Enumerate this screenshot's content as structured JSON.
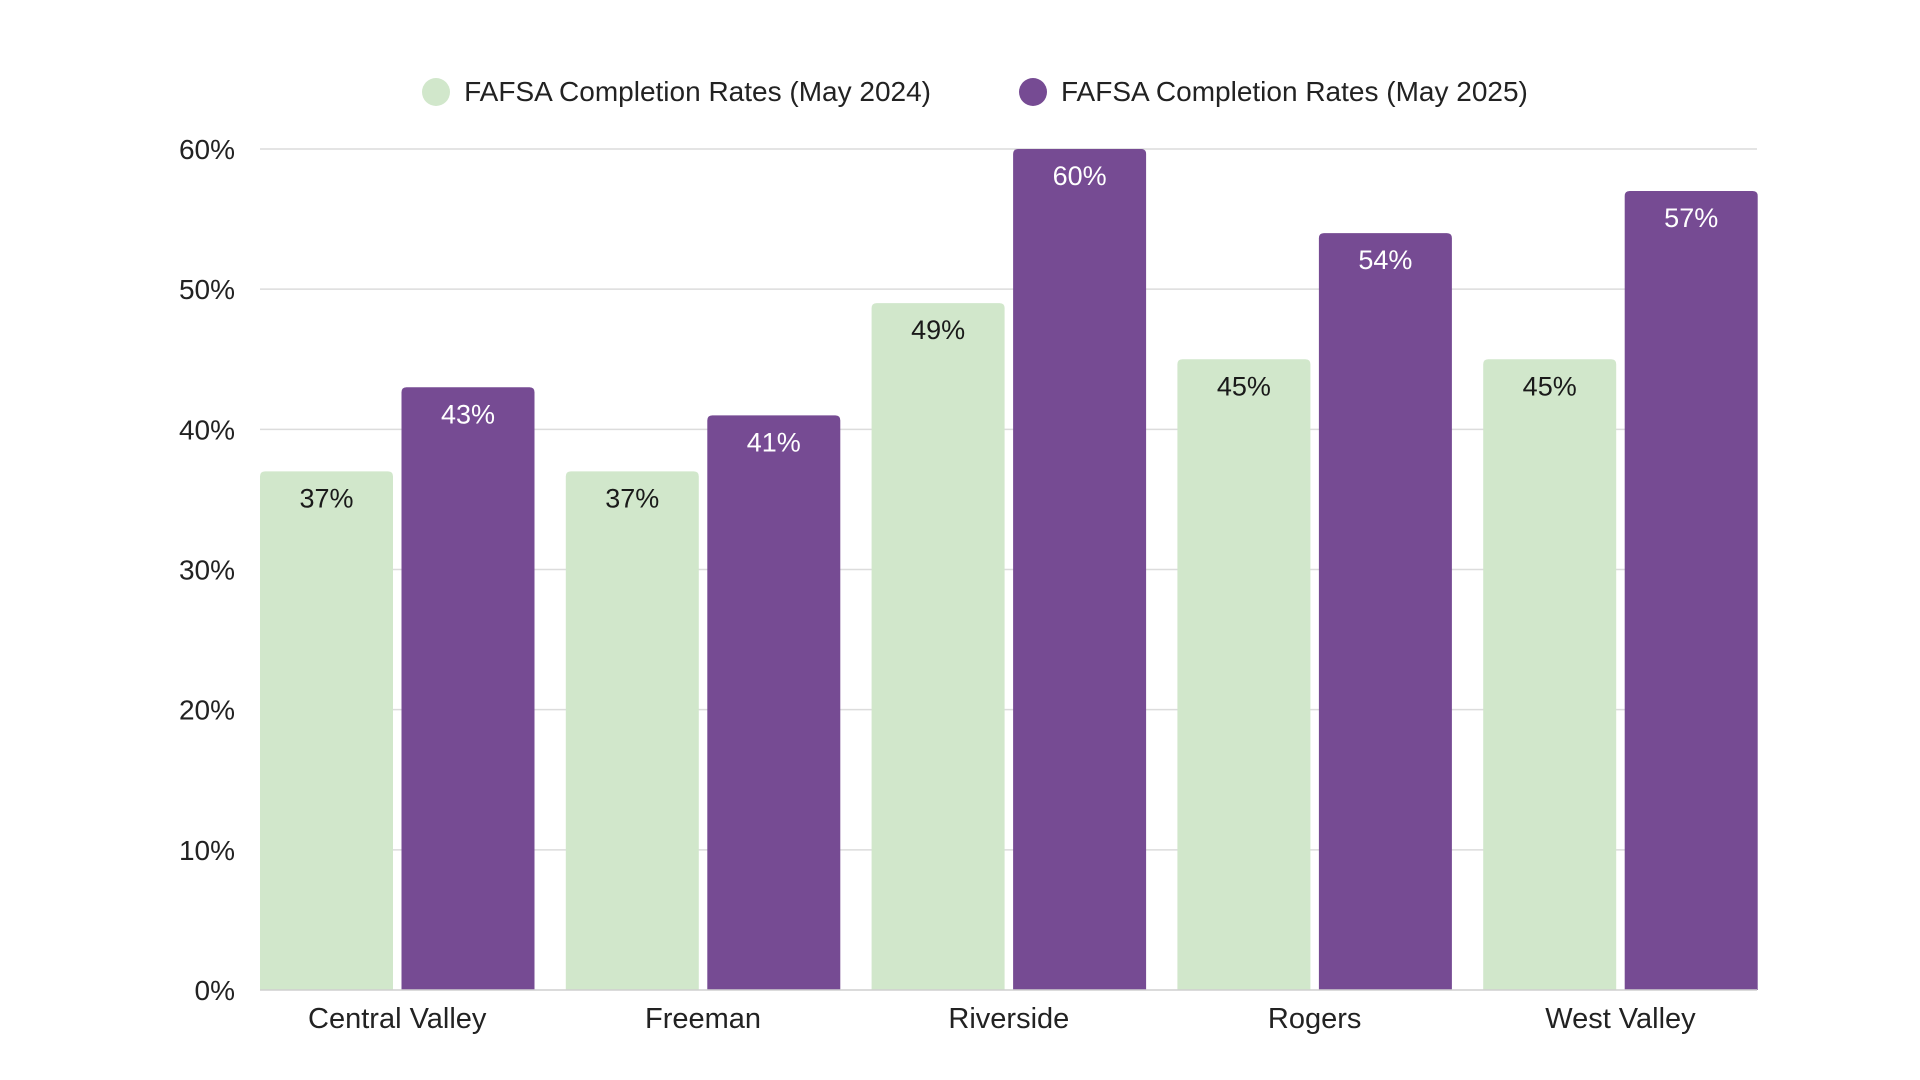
{
  "chart_data": {
    "type": "bar",
    "title": "",
    "xlabel": "",
    "ylabel": "",
    "categories": [
      "Central Valley",
      "Freeman",
      "Riverside",
      "Rogers",
      "West Valley"
    ],
    "series": [
      {
        "name": "FAFSA Completion Rates (May 2024)",
        "color": "#d1e7cb",
        "label_color": "#1a1a1a",
        "values": [
          37,
          37,
          49,
          45,
          45
        ]
      },
      {
        "name": "FAFSA Completion Rates (May 2025)",
        "color": "#764b93",
        "label_color": "#ffffff",
        "values": [
          43,
          41,
          60,
          54,
          57
        ]
      }
    ],
    "ylim": [
      0,
      60
    ],
    "yticks": [
      0,
      10,
      20,
      30,
      40,
      50,
      60
    ],
    "ytick_format": "%",
    "grid": true,
    "legend_position": "top-center",
    "data_labels": "inside-top"
  }
}
